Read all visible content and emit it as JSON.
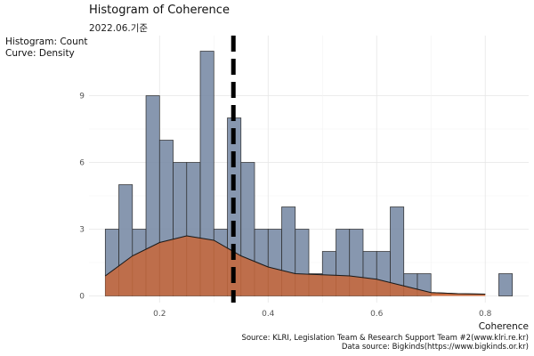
{
  "chart_data": {
    "type": "bar",
    "title": "Histogram of Coherence",
    "subtitle": "2022.06.기준",
    "ylabel_lines": [
      "Histogram: Count",
      "Curve: Density"
    ],
    "xlabel": "Coherence",
    "caption_lines": [
      "Source: KLRI, Legislation Team & Research Support Team #2(www.klri.re.kr)",
      "Data source: Bigkinds(https://www.bigkinds.or.kr)"
    ],
    "xlim": [
      0.07,
      0.88
    ],
    "ylim": [
      -0.3,
      11.7
    ],
    "x_ticks": [
      0.2,
      0.4,
      0.6,
      0.8
    ],
    "x_tick_labels": [
      "0.2",
      "0.4",
      "0.6",
      "0.8"
    ],
    "y_ticks": [
      0,
      3,
      6,
      9
    ],
    "y_tick_labels": [
      "0",
      "3",
      "6",
      "9"
    ],
    "bin_width": 0.025,
    "bins": [
      {
        "x0": 0.1,
        "count": 3
      },
      {
        "x0": 0.125,
        "count": 5
      },
      {
        "x0": 0.15,
        "count": 3
      },
      {
        "x0": 0.175,
        "count": 9
      },
      {
        "x0": 0.2,
        "count": 7
      },
      {
        "x0": 0.225,
        "count": 6
      },
      {
        "x0": 0.25,
        "count": 6
      },
      {
        "x0": 0.275,
        "count": 11
      },
      {
        "x0": 0.3,
        "count": 3
      },
      {
        "x0": 0.325,
        "count": 8
      },
      {
        "x0": 0.35,
        "count": 6
      },
      {
        "x0": 0.375,
        "count": 3
      },
      {
        "x0": 0.4,
        "count": 3
      },
      {
        "x0": 0.425,
        "count": 4
      },
      {
        "x0": 0.45,
        "count": 3
      },
      {
        "x0": 0.475,
        "count": 1
      },
      {
        "x0": 0.5,
        "count": 2
      },
      {
        "x0": 0.525,
        "count": 3
      },
      {
        "x0": 0.55,
        "count": 3
      },
      {
        "x0": 0.575,
        "count": 2
      },
      {
        "x0": 0.6,
        "count": 2
      },
      {
        "x0": 0.625,
        "count": 4
      },
      {
        "x0": 0.65,
        "count": 1
      },
      {
        "x0": 0.675,
        "count": 1
      },
      {
        "x0": 0.825,
        "count": 1
      }
    ],
    "density_curve": {
      "x": [
        0.1,
        0.15,
        0.2,
        0.25,
        0.3,
        0.35,
        0.4,
        0.45,
        0.5,
        0.55,
        0.6,
        0.65,
        0.7,
        0.75,
        0.8
      ],
      "y": [
        0.9,
        1.8,
        2.4,
        2.7,
        2.5,
        1.8,
        1.3,
        1.0,
        0.95,
        0.9,
        0.75,
        0.45,
        0.15,
        0.1,
        0.08
      ]
    },
    "mean_line_x": 0.336,
    "colors": {
      "bar_fill": "#7a8ca6",
      "bar_stroke": "#2b2b2b",
      "density_fill": "#c96a3d",
      "density_fill_light": "#e08a55",
      "mean_line": "#000000",
      "grid": "#e6e6e6"
    }
  }
}
